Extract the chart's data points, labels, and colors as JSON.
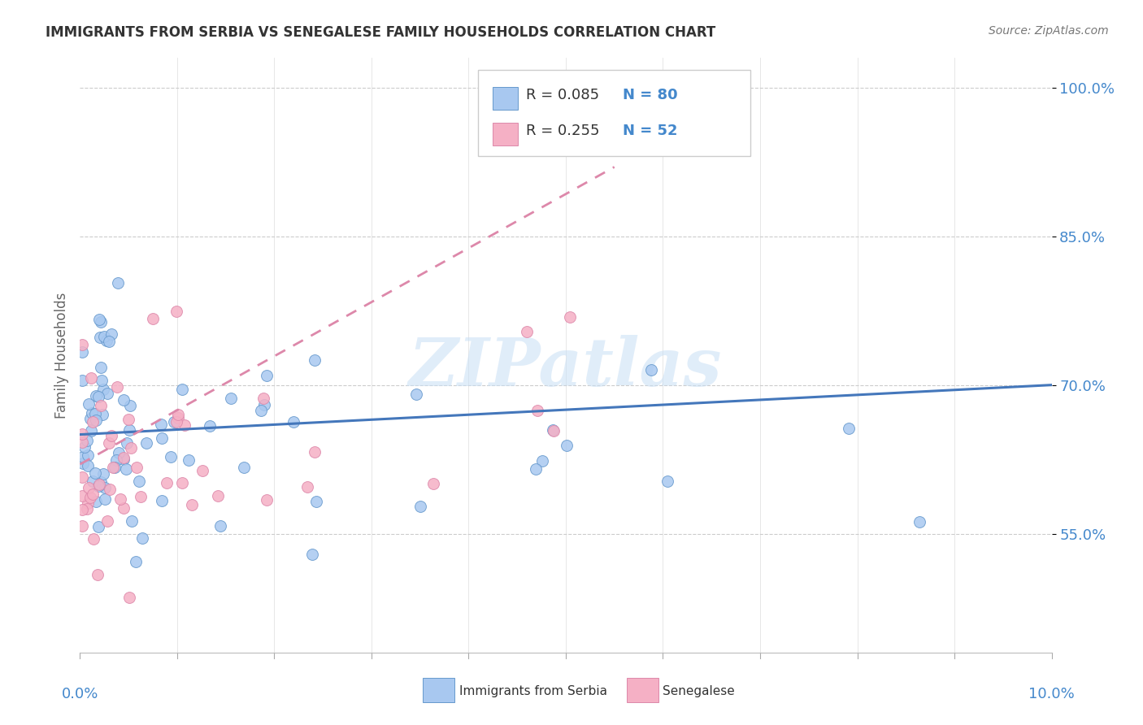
{
  "title": "IMMIGRANTS FROM SERBIA VS SENEGALESE FAMILY HOUSEHOLDS CORRELATION CHART",
  "source": "Source: ZipAtlas.com",
  "ylabel": "Family Households",
  "xlim": [
    0.0,
    10.0
  ],
  "ylim": [
    43.0,
    103.0
  ],
  "yticks": [
    55.0,
    70.0,
    85.0,
    100.0
  ],
  "ytick_labels": [
    "55.0%",
    "70.0%",
    "85.0%",
    "100.0%"
  ],
  "color_blue": "#A8C8F0",
  "color_blue_edge": "#6699CC",
  "color_pink": "#F5B0C5",
  "color_pink_edge": "#DD88AA",
  "color_blue_line": "#4477BB",
  "color_pink_line": "#DD88AA",
  "color_text_blue": "#4488CC",
  "color_grid": "#CCCCCC",
  "color_title": "#333333",
  "color_source": "#777777",
  "color_ylabel": "#666666",
  "watermark": "ZIPatlas",
  "background_color": "#ffffff",
  "legend_r1": "R = 0.085",
  "legend_n1": "N = 80",
  "legend_r2": "R = 0.255",
  "legend_n2": "N = 52"
}
